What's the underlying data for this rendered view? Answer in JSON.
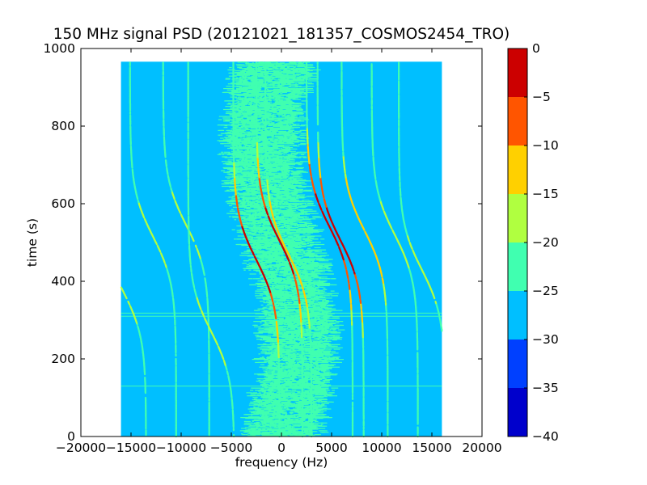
{
  "chart_data": {
    "type": "heatmap",
    "title": "150 MHz signal PSD (20121021_181357_COSMOS2454_TRO)",
    "xlabel": "frequency (Hz)",
    "ylabel": "time (s)",
    "xlim": [
      -20000,
      20000
    ],
    "ylim": [
      0,
      1000
    ],
    "xticks": [
      -20000,
      -15000,
      -10000,
      -5000,
      0,
      5000,
      10000,
      15000,
      20000
    ],
    "yticks": [
      0,
      200,
      400,
      600,
      800,
      1000
    ],
    "data_extent": {
      "x": [
        -16000,
        16000
      ],
      "y": [
        0,
        966
      ]
    },
    "colorbar": {
      "min": -40,
      "max": 0,
      "ticks": [
        0,
        -5,
        -10,
        -15,
        -20,
        -25,
        -30,
        -35,
        -40
      ],
      "levels": [
        {
          "range": [
            -40,
            -35
          ],
          "color": "#0000cc"
        },
        {
          "range": [
            -35,
            -30
          ],
          "color": "#0040ff"
        },
        {
          "range": [
            -30,
            -25
          ],
          "color": "#00bfff"
        },
        {
          "range": [
            -25,
            -20
          ],
          "color": "#40ffb0"
        },
        {
          "range": [
            -20,
            -15
          ],
          "color": "#b0ff40"
        },
        {
          "range": [
            -15,
            -10
          ],
          "color": "#ffd000"
        },
        {
          "range": [
            -10,
            -5
          ],
          "color": "#ff5500"
        },
        {
          "range": [
            -5,
            0
          ],
          "color": "#cc0000"
        }
      ]
    },
    "background_level": -27,
    "noise_band": {
      "center_hz": -300,
      "width_hz": 7000,
      "level": -22
    },
    "traces": [
      {
        "t_center": 375,
        "f_offset": -15800,
        "max_power": -18
      },
      {
        "t_center": 515,
        "f_offset": -12800,
        "max_power": -18
      },
      {
        "t_center": 545,
        "f_offset": -9500,
        "max_power": -18
      },
      {
        "t_center": 270,
        "f_offset": -7000,
        "max_power": -18
      },
      {
        "t_center": 455,
        "f_offset": -2500,
        "max_power": -3
      },
      {
        "t_center": 505,
        "f_offset": -200,
        "max_power": -3
      },
      {
        "t_center": 470,
        "f_offset": 700,
        "max_power": -10
      },
      {
        "t_center": 540,
        "f_offset": 4800,
        "max_power": -3
      },
      {
        "t_center": 505,
        "f_offset": 5900,
        "max_power": -3
      },
      {
        "t_center": 530,
        "f_offset": 8300,
        "max_power": -10
      },
      {
        "t_center": 520,
        "f_offset": 11300,
        "max_power": -18
      },
      {
        "t_center": 430,
        "f_offset": 14000,
        "max_power": -18
      }
    ],
    "horizontal_lines": [
      {
        "t": 318,
        "level": -22
      },
      {
        "t": 310,
        "level": -22
      },
      {
        "t": 130,
        "level": -22
      }
    ]
  }
}
